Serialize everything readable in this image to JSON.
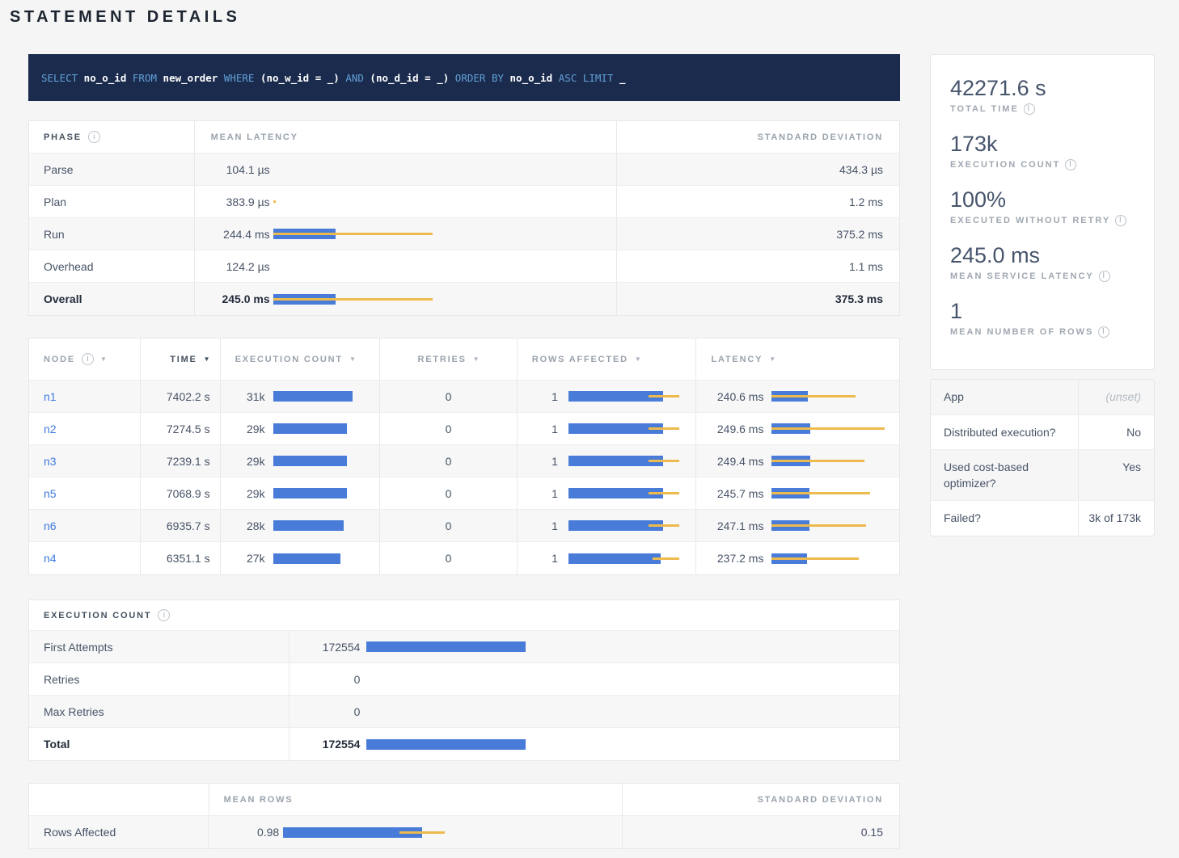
{
  "page_title": "STATEMENT DETAILS",
  "sql": {
    "tokens": [
      {
        "text": "SELECT",
        "type": "kw"
      },
      {
        "text": "no_o_id",
        "type": "id"
      },
      {
        "text": "FROM",
        "type": "kw"
      },
      {
        "text": "new_order",
        "type": "id"
      },
      {
        "text": "WHERE",
        "type": "kw"
      },
      {
        "text": "(no_w_id = _)",
        "type": "id"
      },
      {
        "text": "AND",
        "type": "kw"
      },
      {
        "text": "(no_d_id = _)",
        "type": "id"
      },
      {
        "text": "ORDER BY",
        "type": "kw"
      },
      {
        "text": "no_o_id",
        "type": "id"
      },
      {
        "text": "ASC LIMIT",
        "type": "kw"
      },
      {
        "text": "_",
        "type": "id"
      }
    ]
  },
  "phase_table": {
    "headers": {
      "phase": "Phase",
      "mean_latency": "Mean Latency",
      "std_dev": "Standard Deviation"
    },
    "rows": [
      {
        "phase": "Parse",
        "mean": "104.1 µs",
        "sd": "434.3 µs",
        "bar": {
          "blue": 0,
          "yellow_l": 0,
          "yellow_w": 0
        }
      },
      {
        "phase": "Plan",
        "mean": "383.9 µs",
        "sd": "1.2 ms",
        "bar": {
          "blue": 0,
          "yellow_l": 0,
          "yellow_w": 3
        }
      },
      {
        "phase": "Run",
        "mean": "244.4 ms",
        "sd": "375.2 ms",
        "bar": {
          "blue": 77,
          "yellow_l": 0,
          "yellow_w": 197
        }
      },
      {
        "phase": "Overhead",
        "mean": "124.2 µs",
        "sd": "1.1 ms",
        "bar": {
          "blue": 0,
          "yellow_l": 0,
          "yellow_w": 0
        }
      },
      {
        "phase": "Overall",
        "mean": "245.0 ms",
        "sd": "375.3 ms",
        "bar": {
          "blue": 77,
          "yellow_l": 0,
          "yellow_w": 197
        }
      }
    ]
  },
  "nodes_table": {
    "headers": {
      "node": "Node",
      "time": "Time",
      "exec_count": "Execution Count",
      "retries": "Retries",
      "rows_affected": "Rows Affected",
      "latency": "Latency"
    },
    "rows": [
      {
        "node": "n1",
        "time": "7402.2 s",
        "exec": "31k",
        "exec_bar": 98,
        "retries": "0",
        "rows": "1",
        "rows_bar": {
          "blue": 117,
          "yellow_l": 99,
          "yellow_w": 38
        },
        "latency": "240.6 ms",
        "lat_bar": {
          "blue": 45,
          "yellow_l": 0,
          "yellow_w": 104
        }
      },
      {
        "node": "n2",
        "time": "7274.5 s",
        "exec": "29k",
        "exec_bar": 91,
        "retries": "0",
        "rows": "1",
        "rows_bar": {
          "blue": 117,
          "yellow_l": 99,
          "yellow_w": 38
        },
        "latency": "249.6 ms",
        "lat_bar": {
          "blue": 48,
          "yellow_l": 0,
          "yellow_w": 140
        }
      },
      {
        "node": "n3",
        "time": "7239.1 s",
        "exec": "29k",
        "exec_bar": 91,
        "retries": "0",
        "rows": "1",
        "rows_bar": {
          "blue": 117,
          "yellow_l": 99,
          "yellow_w": 38
        },
        "latency": "249.4 ms",
        "lat_bar": {
          "blue": 48,
          "yellow_l": 0,
          "yellow_w": 115
        }
      },
      {
        "node": "n5",
        "time": "7068.9 s",
        "exec": "29k",
        "exec_bar": 91,
        "retries": "0",
        "rows": "1",
        "rows_bar": {
          "blue": 117,
          "yellow_l": 99,
          "yellow_w": 38
        },
        "latency": "245.7 ms",
        "lat_bar": {
          "blue": 47,
          "yellow_l": 0,
          "yellow_w": 122
        }
      },
      {
        "node": "n6",
        "time": "6935.7 s",
        "exec": "28k",
        "exec_bar": 87,
        "retries": "0",
        "rows": "1",
        "rows_bar": {
          "blue": 117,
          "yellow_l": 99,
          "yellow_w": 38
        },
        "latency": "247.1 ms",
        "lat_bar": {
          "blue": 47,
          "yellow_l": 0,
          "yellow_w": 117
        }
      },
      {
        "node": "n4",
        "time": "6351.1 s",
        "exec": "27k",
        "exec_bar": 83,
        "retries": "0",
        "rows": "1",
        "rows_bar": {
          "blue": 114,
          "yellow_l": 104,
          "yellow_w": 33
        },
        "latency": "237.2 ms",
        "lat_bar": {
          "blue": 44,
          "yellow_l": 0,
          "yellow_w": 108
        }
      }
    ]
  },
  "exec_count_table": {
    "title": "Execution Count",
    "rows": [
      {
        "label": "First Attempts",
        "value": "172554",
        "bar": 197
      },
      {
        "label": "Retries",
        "value": "0",
        "bar": 0
      },
      {
        "label": "Max Retries",
        "value": "0",
        "bar": 0
      },
      {
        "label": "Total",
        "value": "172554",
        "bar": 197
      }
    ]
  },
  "rows_affected_table": {
    "headers": {
      "mean_rows": "Mean Rows",
      "std_dev": "Standard Deviation"
    },
    "row": {
      "label": "Rows Affected",
      "mean": "0.98",
      "sd": "0.15",
      "bar": {
        "blue": 172,
        "yellow_l": 144,
        "yellow_w": 56
      }
    }
  },
  "summary_card": {
    "stats": [
      {
        "value": "42271.6 s",
        "label": "Total Time"
      },
      {
        "value": "173k",
        "label": "Execution Count"
      },
      {
        "value": "100%",
        "label": "Executed without Retry"
      },
      {
        "value": "245.0 ms",
        "label": "Mean Service Latency"
      },
      {
        "value": "1",
        "label": "Mean Number of Rows"
      }
    ]
  },
  "details_card": {
    "rows": [
      {
        "label": "App",
        "value": "(unset)"
      },
      {
        "label": "Distributed execution?",
        "value": "No"
      },
      {
        "label": "Used cost-based optimizer?",
        "value": "Yes"
      },
      {
        "label": "Failed?",
        "value": "3k of 173k"
      }
    ]
  },
  "colors": {
    "bar_blue": "#487cd8",
    "bar_yellow": "#edba4d",
    "link_blue": "#3d7be0",
    "sql_background": "#1b2b4d",
    "sql_keyword": "#61a0d6"
  }
}
